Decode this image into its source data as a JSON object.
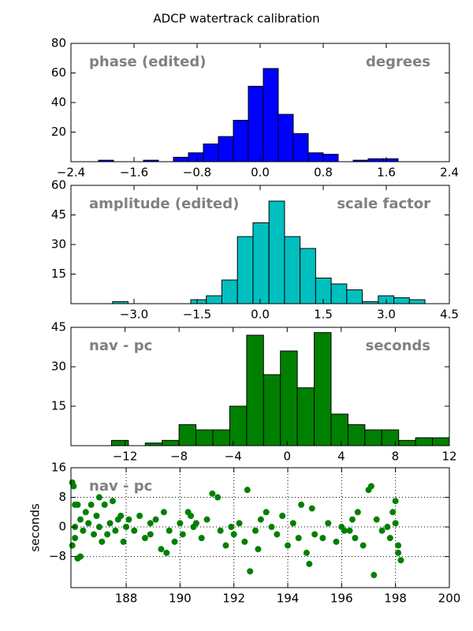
{
  "title": "ADCP watertrack calibration",
  "chart_data": [
    {
      "type": "histogram",
      "color": "#0000ff",
      "annotations": [
        "phase (edited)",
        "degrees"
      ],
      "bins": [
        -2.05,
        -1.86,
        -1.67,
        -1.48,
        -1.29,
        -1.1,
        -0.91,
        -0.72,
        -0.53,
        -0.34,
        -0.15,
        0.04,
        0.23,
        0.42,
        0.61,
        0.8,
        0.99,
        1.18,
        1.37,
        1.56,
        1.75
      ],
      "values": [
        1,
        0,
        0,
        1,
        0,
        3,
        6,
        12,
        17,
        28,
        51,
        63,
        32,
        19,
        6,
        5,
        0,
        1,
        2,
        2
      ],
      "xlim": [
        -2.4,
        2.4
      ],
      "ylim": [
        0,
        80
      ],
      "xticks": [
        {
          "value": -2.4,
          "label": "−2.4"
        },
        {
          "value": -1.6,
          "label": "−1.6"
        },
        {
          "value": -0.8,
          "label": "−0.8"
        },
        {
          "value": 0,
          "label": "0.0"
        },
        0.8,
        1.6,
        2.4
      ],
      "yticks": [
        20,
        40,
        60,
        80
      ]
    },
    {
      "type": "histogram",
      "color": "#00bfbf",
      "annotations": [
        "amplitude (edited)",
        "scale factor"
      ],
      "bins": [
        -3.51,
        -3.14,
        -2.77,
        -2.4,
        -2.02,
        -1.65,
        -1.28,
        -0.91,
        -0.54,
        -0.17,
        0.21,
        0.58,
        0.95,
        1.32,
        1.69,
        2.06,
        2.43,
        2.81,
        3.18,
        3.55,
        3.92
      ],
      "values": [
        1,
        0,
        0,
        0,
        0,
        2,
        4,
        12,
        34,
        41,
        52,
        34,
        28,
        13,
        10,
        7,
        1,
        4,
        3,
        2
      ],
      "xlim": [
        -4.5,
        4.5
      ],
      "ylim": [
        0,
        60
      ],
      "xticks": [
        {
          "value": -3,
          "label": "−3.0"
        },
        {
          "value": -1.5,
          "label": "−1.5"
        },
        {
          "value": 0,
          "label": "0.0"
        },
        1.5,
        {
          "value": 3,
          "label": "3.0"
        },
        4.5
      ],
      "yticks": [
        15,
        30,
        45,
        60
      ]
    },
    {
      "type": "histogram",
      "color": "#008000",
      "annotations": [
        "nav - pc",
        "seconds"
      ],
      "bins": [
        -13,
        -11.75,
        -10.5,
        -9.25,
        -8,
        -6.75,
        -5.5,
        -4.25,
        -3,
        -1.75,
        -0.5,
        0.75,
        2,
        3.25,
        4.5,
        5.75,
        7,
        8.25,
        9.5,
        10.75,
        12
      ],
      "values": [
        2,
        0,
        1,
        2,
        8,
        6,
        6,
        15,
        42,
        27,
        36,
        22,
        43,
        12,
        8,
        6,
        6,
        2,
        3,
        3
      ],
      "xlim": [
        -16,
        12
      ],
      "ylim": [
        0,
        45
      ],
      "xticks": [
        {
          "value": -12,
          "label": "−12"
        },
        {
          "value": -8,
          "label": "−8"
        },
        {
          "value": -4,
          "label": "−4"
        },
        0,
        4,
        8,
        12
      ],
      "yticks": [
        15,
        30,
        45
      ]
    },
    {
      "type": "scatter",
      "color": "#008000",
      "annotations": [
        "nav - pc"
      ],
      "ylabel": "seconds",
      "grid": true,
      "x": [
        186.0,
        186.05,
        186.1,
        186.2,
        186.0,
        186.1,
        186.2,
        186.3,
        186.1,
        186.3,
        186.4,
        186.5,
        186.6,
        186.7,
        186.8,
        186.9,
        187.0,
        187.1,
        187.2,
        187.3,
        187.4,
        187.5,
        187.6,
        187.7,
        187.8,
        187.9,
        188.0,
        188.1,
        188.3,
        188.5,
        188.7,
        188.9,
        189.1,
        189.3,
        189.5,
        189.4,
        189.6,
        189.8,
        190.0,
        190.1,
        190.3,
        190.5,
        190.6,
        190.8,
        191.0,
        191.2,
        191.4,
        191.5,
        191.7,
        191.9,
        192.0,
        192.2,
        192.4,
        192.5,
        192.6,
        192.8,
        193.0,
        193.2,
        193.4,
        193.6,
        193.8,
        194.0,
        194.2,
        194.4,
        194.5,
        194.7,
        194.8,
        195.0,
        195.3,
        195.5,
        195.8,
        196.0,
        196.1,
        196.3,
        196.5,
        196.6,
        196.8,
        197.0,
        197.1,
        197.2,
        197.3,
        197.5,
        197.7,
        197.8,
        197.9,
        198.0,
        198.1,
        198.2,
        198.1,
        187.0,
        188.9,
        190.4,
        192.9,
        194.9,
        196.4,
        198.0
      ],
      "values": [
        12,
        11,
        6,
        6,
        -5,
        -3,
        -8.5,
        -8,
        0,
        2,
        -1,
        4,
        1,
        6,
        -2,
        3,
        0,
        -4,
        6,
        -2,
        1,
        7,
        -1,
        2,
        3,
        -4,
        0,
        2,
        -1,
        3,
        -3,
        1,
        2,
        -6,
        -7,
        4,
        -1,
        -4,
        1,
        -2,
        4,
        0,
        1,
        -3,
        2,
        9,
        8,
        -1,
        -5,
        0,
        -2,
        1,
        -4,
        10,
        -12,
        -1,
        2,
        4,
        0,
        -2,
        3,
        -5,
        1,
        -3,
        6,
        -7,
        -10,
        -2,
        -3,
        1,
        -4,
        0,
        -1,
        -1,
        -3,
        4,
        -5,
        10,
        11,
        -13,
        2,
        -1,
        0,
        -3,
        4,
        7,
        -7,
        -9,
        -5,
        8,
        -2,
        3,
        -6,
        5,
        2,
        1
      ],
      "xlim": [
        185.95,
        200
      ],
      "ylim": [
        -16.4,
        16
      ],
      "xticks": [
        188,
        190,
        192,
        194,
        196,
        198,
        200
      ],
      "yticks": [
        {
          "value": -8,
          "label": "−8"
        },
        0,
        8,
        16
      ]
    }
  ]
}
